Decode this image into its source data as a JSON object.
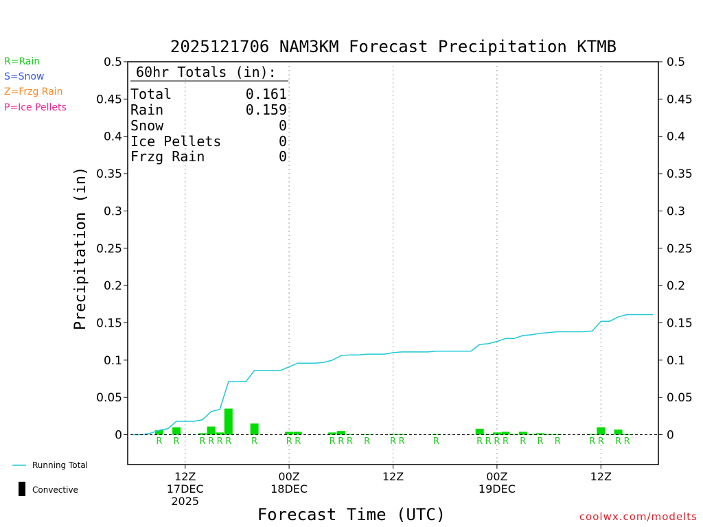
{
  "title": "2025121706 NAM3KM Forecast Precipitation KTMB",
  "legend_types": [
    {
      "label": "R=Rain",
      "color": "#22cc22"
    },
    {
      "label": "S=Snow",
      "color": "#3355ee"
    },
    {
      "label": "Z=Frzg Rain",
      "color": "#ff8822"
    },
    {
      "label": "P=Ice Pellets",
      "color": "#ee2299"
    }
  ],
  "totals": {
    "header": "60hr Totals (in):",
    "rows": [
      {
        "label": "Total",
        "value": "0.161"
      },
      {
        "label": "Rain",
        "value": "0.159"
      },
      {
        "label": "Snow",
        "value": "0"
      },
      {
        "label": "Ice Pellets",
        "value": "0"
      },
      {
        "label": "Frzg Rain",
        "value": "0"
      }
    ]
  },
  "bottom_legend": {
    "running_total": "Running Total",
    "convective": "Convective"
  },
  "watermark": "coolwx.com/modelts",
  "chart_data": {
    "type": "bar",
    "title": "2025121706 NAM3KM Forecast Precipitation KTMB",
    "xlabel": "Forecast Time (UTC)",
    "ylabel": "Precipitation (in)",
    "ylim": [
      -0.04,
      0.5
    ],
    "xlim": [
      0,
      60
    ],
    "yticks": [
      0,
      0.05,
      0.1,
      0.15,
      0.2,
      0.25,
      0.3,
      0.35,
      0.4,
      0.45,
      0.5
    ],
    "ytick_labels": [
      "0",
      "0.05",
      "0.1",
      "0.15",
      "0.2",
      "0.25",
      "0.3",
      "0.35",
      "0.4",
      "0.45",
      "0.5"
    ],
    "xticks": [
      {
        "hour": 6,
        "lines": [
          "12Z",
          "17DEC",
          "2025"
        ]
      },
      {
        "hour": 18,
        "lines": [
          "00Z",
          "18DEC"
        ]
      },
      {
        "hour": 30,
        "lines": [
          "12Z"
        ]
      },
      {
        "hour": 42,
        "lines": [
          "00Z",
          "19DEC"
        ]
      },
      {
        "hour": 54,
        "lines": [
          "12Z"
        ]
      }
    ],
    "colors": {
      "bar": "#00dd00",
      "line": "#20c8d8",
      "ptype": "#22cc22"
    },
    "bars": [
      {
        "hour": 3,
        "value": 0.006
      },
      {
        "hour": 5,
        "value": 0.01
      },
      {
        "hour": 8,
        "value": 0.002
      },
      {
        "hour": 9,
        "value": 0.011
      },
      {
        "hour": 10,
        "value": 0.003
      },
      {
        "hour": 11,
        "value": 0.035
      },
      {
        "hour": 14,
        "value": 0.015
      },
      {
        "hour": 18,
        "value": 0.004
      },
      {
        "hour": 19,
        "value": 0.004
      },
      {
        "hour": 23,
        "value": 0.003
      },
      {
        "hour": 24,
        "value": 0.005
      },
      {
        "hour": 25,
        "value": 0.001
      },
      {
        "hour": 27,
        "value": 0.001
      },
      {
        "hour": 30,
        "value": 0.001
      },
      {
        "hour": 31,
        "value": 0.001
      },
      {
        "hour": 35,
        "value": 0.001
      },
      {
        "hour": 40,
        "value": 0.008
      },
      {
        "hour": 41,
        "value": 0.001
      },
      {
        "hour": 42,
        "value": 0.003
      },
      {
        "hour": 43,
        "value": 0.004
      },
      {
        "hour": 44,
        "value": 0.001
      },
      {
        "hour": 45,
        "value": 0.004
      },
      {
        "hour": 46,
        "value": 0.001
      },
      {
        "hour": 47,
        "value": 0.002
      },
      {
        "hour": 48,
        "value": 0.001
      },
      {
        "hour": 49,
        "value": 0.001
      },
      {
        "hour": 53,
        "value": 0.001
      },
      {
        "hour": 54,
        "value": 0.01
      },
      {
        "hour": 56,
        "value": 0.007
      },
      {
        "hour": 57,
        "value": 0.001
      }
    ],
    "ptype_markers": [
      {
        "hour": 3,
        "label": "R"
      },
      {
        "hour": 5,
        "label": "R"
      },
      {
        "hour": 8,
        "label": "R"
      },
      {
        "hour": 9,
        "label": "R"
      },
      {
        "hour": 10,
        "label": "R"
      },
      {
        "hour": 11,
        "label": "R"
      },
      {
        "hour": 14,
        "label": "R"
      },
      {
        "hour": 18,
        "label": "R"
      },
      {
        "hour": 19,
        "label": "R"
      },
      {
        "hour": 23,
        "label": "R"
      },
      {
        "hour": 24,
        "label": "R"
      },
      {
        "hour": 25,
        "label": "R"
      },
      {
        "hour": 27,
        "label": "R"
      },
      {
        "hour": 30,
        "label": "R"
      },
      {
        "hour": 31,
        "label": "R"
      },
      {
        "hour": 35,
        "label": "R"
      },
      {
        "hour": 40,
        "label": "R"
      },
      {
        "hour": 41,
        "label": "R"
      },
      {
        "hour": 42,
        "label": "R"
      },
      {
        "hour": 43,
        "label": "R"
      },
      {
        "hour": 45,
        "label": "R"
      },
      {
        "hour": 47,
        "label": "R"
      },
      {
        "hour": 49,
        "label": "R"
      },
      {
        "hour": 53,
        "label": "R"
      },
      {
        "hour": 54,
        "label": "R"
      },
      {
        "hour": 56,
        "label": "R"
      },
      {
        "hour": 57,
        "label": "R"
      }
    ],
    "running_total": [
      [
        0,
        0
      ],
      [
        1,
        0
      ],
      [
        2,
        0.002
      ],
      [
        3,
        0.006
      ],
      [
        4,
        0.008
      ],
      [
        5,
        0.018
      ],
      [
        6,
        0.018
      ],
      [
        7,
        0.018
      ],
      [
        8,
        0.02
      ],
      [
        9,
        0.031
      ],
      [
        10,
        0.034
      ],
      [
        11,
        0.071
      ],
      [
        12,
        0.071
      ],
      [
        13,
        0.071
      ],
      [
        14,
        0.086
      ],
      [
        15,
        0.086
      ],
      [
        16,
        0.086
      ],
      [
        17,
        0.086
      ],
      [
        18,
        0.091
      ],
      [
        19,
        0.096
      ],
      [
        20,
        0.096
      ],
      [
        21,
        0.096
      ],
      [
        22,
        0.097
      ],
      [
        23,
        0.1
      ],
      [
        24,
        0.106
      ],
      [
        25,
        0.107
      ],
      [
        26,
        0.107
      ],
      [
        27,
        0.108
      ],
      [
        28,
        0.108
      ],
      [
        29,
        0.108
      ],
      [
        30,
        0.11
      ],
      [
        31,
        0.111
      ],
      [
        32,
        0.111
      ],
      [
        33,
        0.111
      ],
      [
        34,
        0.111
      ],
      [
        35,
        0.112
      ],
      [
        36,
        0.112
      ],
      [
        37,
        0.112
      ],
      [
        38,
        0.112
      ],
      [
        39,
        0.112
      ],
      [
        40,
        0.121
      ],
      [
        41,
        0.122
      ],
      [
        42,
        0.125
      ],
      [
        43,
        0.129
      ],
      [
        44,
        0.129
      ],
      [
        45,
        0.133
      ],
      [
        46,
        0.134
      ],
      [
        47,
        0.136
      ],
      [
        48,
        0.137
      ],
      [
        49,
        0.138
      ],
      [
        50,
        0.138
      ],
      [
        51,
        0.138
      ],
      [
        52,
        0.138
      ],
      [
        53,
        0.139
      ],
      [
        54,
        0.152
      ],
      [
        55,
        0.152
      ],
      [
        56,
        0.158
      ],
      [
        57,
        0.161
      ],
      [
        58,
        0.161
      ],
      [
        59,
        0.161
      ],
      [
        60,
        0.161
      ]
    ]
  }
}
